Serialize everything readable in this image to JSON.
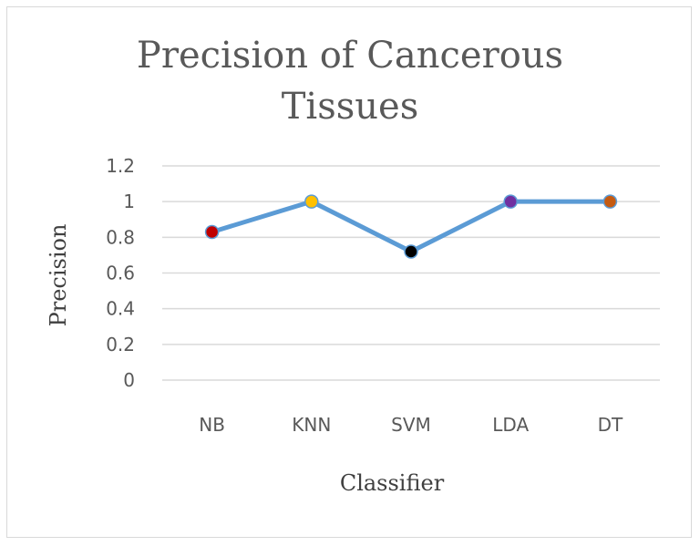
{
  "chart_data": {
    "type": "line",
    "title_line1": "Precision of Cancerous",
    "title_line2": "Tissues",
    "xlabel": "Classifier",
    "ylabel": "Precision",
    "categories": [
      "NB",
      "KNN",
      "SVM",
      "LDA",
      "DT"
    ],
    "series": [
      {
        "values": [
          0.83,
          1.0,
          0.72,
          1.0,
          1.0
        ]
      }
    ],
    "ylim": [
      0,
      1.2
    ],
    "yticks": [
      "0",
      "0.2",
      "0.4",
      "0.6",
      "0.8",
      "1",
      "1.2"
    ],
    "grid": true,
    "line_color": "#5b9bd5",
    "marker_colors": [
      "#c00000",
      "#ffc000",
      "#000000",
      "#7030a0",
      "#c55a11"
    ]
  }
}
